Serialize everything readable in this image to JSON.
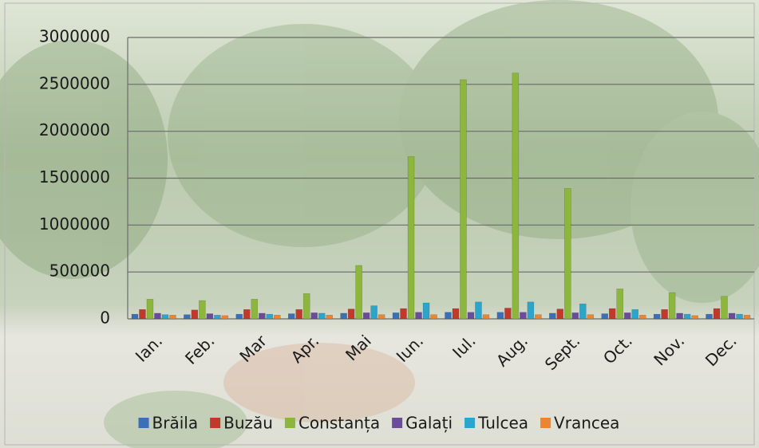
{
  "chart_data": {
    "type": "bar",
    "categories": [
      "Ian.",
      "Feb.",
      "Mar",
      "Apr.",
      "Mai",
      "Iun.",
      "Iul.",
      "Aug.",
      "Sept.",
      "Oct.",
      "Nov.",
      "Dec."
    ],
    "series": [
      {
        "name": "Brăila",
        "color": "#3b6fb6",
        "values": [
          50000,
          45000,
          50000,
          55000,
          60000,
          65000,
          70000,
          70000,
          60000,
          55000,
          50000,
          50000
        ]
      },
      {
        "name": "Buzău",
        "color": "#c0392b",
        "values": [
          100000,
          95000,
          100000,
          100000,
          105000,
          110000,
          110000,
          115000,
          105000,
          110000,
          100000,
          110000
        ]
      },
      {
        "name": "Constanța",
        "color": "#8cb63c",
        "values": [
          210000,
          195000,
          210000,
          270000,
          570000,
          1730000,
          2550000,
          2620000,
          1390000,
          320000,
          280000,
          240000
        ]
      },
      {
        "name": "Galați",
        "color": "#6b4c9a",
        "values": [
          60000,
          55000,
          60000,
          65000,
          65000,
          70000,
          70000,
          70000,
          65000,
          65000,
          60000,
          60000
        ]
      },
      {
        "name": "Tulcea",
        "color": "#2ba5cb",
        "values": [
          45000,
          40000,
          50000,
          60000,
          140000,
          170000,
          180000,
          180000,
          160000,
          100000,
          50000,
          50000
        ]
      },
      {
        "name": "Vrancea",
        "color": "#ec8430",
        "values": [
          40000,
          35000,
          40000,
          40000,
          45000,
          45000,
          45000,
          45000,
          45000,
          40000,
          35000,
          40000
        ]
      }
    ],
    "ylim": [
      0,
      3000000
    ],
    "yticks": [
      0,
      500000,
      1000000,
      1500000,
      2000000,
      2500000,
      3000000
    ],
    "grid": true,
    "legend": "bottom"
  }
}
